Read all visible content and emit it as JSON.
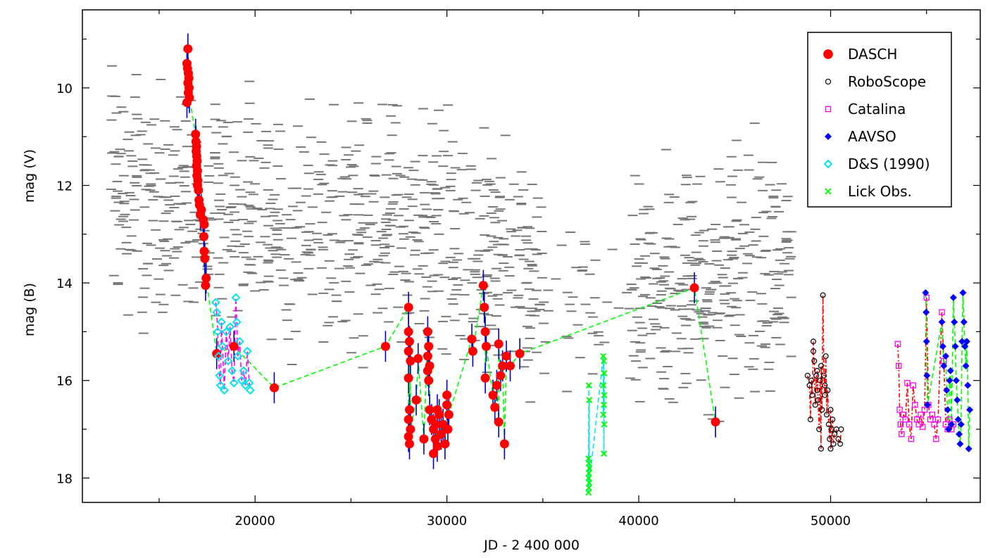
{
  "chart_data": {
    "type": "scatter",
    "xlabel": "JD - 2 400 000",
    "ylabel_upper": "mag (V)",
    "ylabel_lower": "mag (B)",
    "xlim": [
      11000,
      57800
    ],
    "ylim": [
      18.5,
      8.4
    ],
    "y_inverted": true,
    "grid": false,
    "legend_position": "top-right",
    "x_ticks": [
      20000,
      30000,
      40000,
      50000
    ],
    "x_tick_labels": [
      "20000",
      "30000",
      "40000",
      "50000"
    ],
    "y_ticks": [
      10,
      12,
      14,
      16,
      18
    ],
    "y_tick_labels": [
      "10",
      "12",
      "14",
      "16",
      "18"
    ],
    "colors": {
      "DASCH": "#ff0000",
      "RoboScope": "#000000",
      "Catalina": "#ff00ff",
      "AAVSO": "#0000ff",
      "D&S (1990)": "#00e5ee",
      "Lick Obs.": "#00ff00",
      "limits": "#777777",
      "errorbar": "#0000cc"
    },
    "legend": [
      {
        "label": "DASCH",
        "marker": "filled-circle"
      },
      {
        "label": "RoboScope",
        "marker": "open-circle"
      },
      {
        "label": "Catalina",
        "marker": "open-square"
      },
      {
        "label": "AAVSO",
        "marker": "filled-diamond"
      },
      {
        "label": "D&S (1990)",
        "marker": "open-diamond"
      },
      {
        "label": "Lick Obs.",
        "marker": "cross"
      }
    ],
    "series": [
      {
        "name": "DASCH",
        "points": [
          [
            16500,
            9.2
          ],
          [
            16450,
            9.5
          ],
          [
            16480,
            9.6
          ],
          [
            16520,
            9.7
          ],
          [
            16550,
            9.8
          ],
          [
            16500,
            9.9
          ],
          [
            16560,
            10.0
          ],
          [
            16520,
            10.1
          ],
          [
            16580,
            10.2
          ],
          [
            16450,
            10.3
          ],
          [
            16900,
            10.95
          ],
          [
            16920,
            11.1
          ],
          [
            16950,
            11.2
          ],
          [
            16930,
            11.3
          ],
          [
            16960,
            11.4
          ],
          [
            16980,
            11.5
          ],
          [
            16950,
            11.6
          ],
          [
            17000,
            11.7
          ],
          [
            16970,
            11.8
          ],
          [
            17020,
            11.9
          ],
          [
            17000,
            12.0
          ],
          [
            17050,
            12.1
          ],
          [
            17080,
            12.3
          ],
          [
            17100,
            12.4
          ],
          [
            17200,
            12.5
          ],
          [
            17150,
            12.6
          ],
          [
            17300,
            12.7
          ],
          [
            17350,
            12.8
          ],
          [
            17330,
            13.05
          ],
          [
            17350,
            13.35
          ],
          [
            17380,
            13.5
          ],
          [
            17450,
            13.9
          ],
          [
            17420,
            14.05
          ],
          [
            18000,
            15.45
          ],
          [
            18900,
            15.3
          ],
          [
            21000,
            16.15
          ],
          [
            26800,
            15.3
          ],
          [
            28000,
            14.5
          ],
          [
            28000,
            15.0
          ],
          [
            28050,
            15.2
          ],
          [
            28000,
            15.4
          ],
          [
            28100,
            15.6
          ],
          [
            28000,
            15.95
          ],
          [
            28050,
            16.6
          ],
          [
            28000,
            16.8
          ],
          [
            28100,
            17.0
          ],
          [
            28000,
            17.15
          ],
          [
            28050,
            17.3
          ],
          [
            28400,
            16.4
          ],
          [
            28500,
            15.55
          ],
          [
            28800,
            17.2
          ],
          [
            29000,
            15.0
          ],
          [
            29050,
            15.3
          ],
          [
            29000,
            15.5
          ],
          [
            29100,
            15.7
          ],
          [
            29000,
            15.8
          ],
          [
            29050,
            16.0
          ],
          [
            29100,
            16.6
          ],
          [
            29200,
            16.8
          ],
          [
            29300,
            17.0
          ],
          [
            29400,
            17.2
          ],
          [
            29500,
            17.35
          ],
          [
            29300,
            17.5
          ],
          [
            29600,
            16.7
          ],
          [
            29700,
            17.1
          ],
          [
            29800,
            16.9
          ],
          [
            29900,
            17.3
          ],
          [
            30000,
            16.5
          ],
          [
            30100,
            16.7
          ],
          [
            30050,
            17.0
          ],
          [
            29500,
            16.6
          ],
          [
            29400,
            16.9
          ],
          [
            30000,
            16.3
          ],
          [
            31300,
            15.15
          ],
          [
            31350,
            15.4
          ],
          [
            31900,
            14.05
          ],
          [
            31950,
            14.5
          ],
          [
            32000,
            15.0
          ],
          [
            32050,
            15.3
          ],
          [
            32000,
            15.95
          ],
          [
            32400,
            16.3
          ],
          [
            32500,
            16.55
          ],
          [
            32600,
            16.1
          ],
          [
            32700,
            16.85
          ],
          [
            32700,
            15.25
          ],
          [
            32800,
            15.9
          ],
          [
            32900,
            15.7
          ],
          [
            33000,
            17.3
          ],
          [
            33100,
            15.5
          ],
          [
            33300,
            15.7
          ],
          [
            33800,
            15.45
          ],
          [
            42900,
            14.1
          ],
          [
            44000,
            16.85
          ]
        ]
      },
      {
        "name": "RoboScope",
        "points": [
          [
            48800,
            15.9
          ],
          [
            48900,
            16.1
          ],
          [
            48950,
            16.8
          ],
          [
            49000,
            16.0
          ],
          [
            49050,
            16.3
          ],
          [
            49100,
            15.2
          ],
          [
            49150,
            15.6
          ],
          [
            49200,
            16.5
          ],
          [
            49250,
            15.9
          ],
          [
            49300,
            16.2
          ],
          [
            49350,
            16.4
          ],
          [
            49400,
            17.0
          ],
          [
            49450,
            16.0
          ],
          [
            49500,
            17.4
          ],
          [
            49550,
            16.6
          ],
          [
            49600,
            14.25
          ],
          [
            49650,
            15.9
          ],
          [
            49700,
            16.3
          ],
          [
            49750,
            15.5
          ],
          [
            49800,
            16.7
          ],
          [
            49850,
            16.2
          ],
          [
            49900,
            16.9
          ],
          [
            49950,
            17.2
          ],
          [
            50000,
            16.6
          ],
          [
            50050,
            17.0
          ],
          [
            50100,
            16.8
          ],
          [
            50150,
            17.3
          ],
          [
            50200,
            17.1
          ],
          [
            50300,
            17.0
          ],
          [
            50400,
            17.2
          ],
          [
            50500,
            17.3
          ],
          [
            50550,
            17.0
          ],
          [
            49100,
            15.4
          ],
          [
            49300,
            15.8
          ],
          [
            49500,
            15.7
          ],
          [
            49700,
            16.1
          ],
          [
            50000,
            17.4
          ]
        ]
      },
      {
        "name": "Catalina",
        "points": [
          [
            53500,
            15.25
          ],
          [
            53550,
            15.7
          ],
          [
            53600,
            16.6
          ],
          [
            53650,
            16.9
          ],
          [
            53700,
            17.1
          ],
          [
            53800,
            16.7
          ],
          [
            53900,
            16.8
          ],
          [
            54000,
            16.05
          ],
          [
            54100,
            16.9
          ],
          [
            54200,
            17.2
          ],
          [
            54300,
            16.1
          ],
          [
            54400,
            16.5
          ],
          [
            54500,
            16.8
          ],
          [
            54600,
            16.9
          ],
          [
            54700,
            16.7
          ],
          [
            54800,
            16.95
          ],
          [
            54900,
            16.6
          ],
          [
            55000,
            14.3
          ],
          [
            55100,
            16.5
          ],
          [
            55200,
            16.8
          ],
          [
            55300,
            16.7
          ],
          [
            55400,
            16.9
          ],
          [
            55500,
            17.2
          ],
          [
            55600,
            16.8
          ],
          [
            55800,
            14.6
          ],
          [
            55900,
            15.6
          ],
          [
            56000,
            16.9
          ],
          [
            56100,
            17.0
          ],
          [
            56200,
            16.8
          ],
          [
            56300,
            17.0
          ],
          [
            56400,
            16.9
          ]
        ]
      },
      {
        "name": "AAVSO",
        "points": [
          [
            54950,
            14.2
          ],
          [
            54980,
            14.6
          ],
          [
            55000,
            15.2
          ],
          [
            55020,
            15.9
          ],
          [
            55050,
            16.5
          ],
          [
            55800,
            14.8
          ],
          [
            55850,
            15.3
          ],
          [
            55900,
            15.7
          ],
          [
            56000,
            15.5
          ],
          [
            56050,
            16.2
          ],
          [
            56100,
            16.6
          ],
          [
            56150,
            17.0
          ],
          [
            56200,
            16.0
          ],
          [
            56250,
            15.8
          ],
          [
            56300,
            16.9
          ],
          [
            56400,
            14.3
          ],
          [
            56450,
            14.8
          ],
          [
            56500,
            15.3
          ],
          [
            56550,
            16.0
          ],
          [
            56600,
            16.4
          ],
          [
            56650,
            16.8
          ],
          [
            56700,
            17.1
          ],
          [
            56750,
            17.3
          ],
          [
            56800,
            16.9
          ],
          [
            56850,
            15.2
          ],
          [
            56900,
            14.2
          ],
          [
            56950,
            14.8
          ],
          [
            57000,
            15.3
          ],
          [
            57050,
            15.7
          ],
          [
            57100,
            15.2
          ],
          [
            57150,
            16.1
          ],
          [
            57200,
            17.4
          ],
          [
            57250,
            16.6
          ]
        ]
      },
      {
        "name": "D&S (1990)",
        "points": [
          [
            17950,
            14.4
          ],
          [
            18000,
            14.6
          ],
          [
            18050,
            15.0
          ],
          [
            18100,
            15.5
          ],
          [
            18150,
            15.9
          ],
          [
            18200,
            16.1
          ],
          [
            18250,
            14.8
          ],
          [
            18300,
            15.3
          ],
          [
            18400,
            16.2
          ],
          [
            18500,
            15.0
          ],
          [
            18600,
            15.6
          ],
          [
            18700,
            14.9
          ],
          [
            18800,
            15.8
          ],
          [
            18900,
            16.05
          ],
          [
            19000,
            14.3
          ],
          [
            19050,
            14.8
          ],
          [
            19100,
            15.5
          ],
          [
            19200,
            15.2
          ],
          [
            19300,
            16.0
          ],
          [
            19400,
            15.8
          ],
          [
            19500,
            16.1
          ],
          [
            19600,
            15.4
          ],
          [
            19700,
            16.05
          ],
          [
            19750,
            16.2
          ]
        ]
      },
      {
        "name": "Lick Obs.",
        "points": [
          [
            37400,
            16.1
          ],
          [
            37420,
            16.4
          ],
          [
            37380,
            17.6
          ],
          [
            37400,
            17.7
          ],
          [
            37420,
            17.8
          ],
          [
            37400,
            17.9
          ],
          [
            37380,
            18.0
          ],
          [
            37420,
            18.1
          ],
          [
            37400,
            18.2
          ],
          [
            37380,
            18.3
          ],
          [
            38150,
            15.5
          ],
          [
            38180,
            15.6
          ],
          [
            38200,
            15.85
          ],
          [
            38150,
            16.1
          ],
          [
            38200,
            16.3
          ],
          [
            38180,
            16.5
          ],
          [
            38150,
            16.7
          ],
          [
            38200,
            16.9
          ],
          [
            38180,
            17.5
          ]
        ]
      }
    ]
  }
}
